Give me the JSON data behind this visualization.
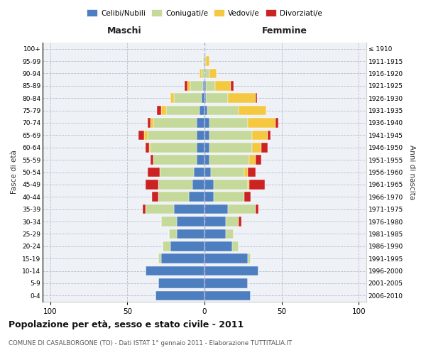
{
  "age_groups": [
    "0-4",
    "5-9",
    "10-14",
    "15-19",
    "20-24",
    "25-29",
    "30-34",
    "35-39",
    "40-44",
    "45-49",
    "50-54",
    "55-59",
    "60-64",
    "65-69",
    "70-74",
    "75-79",
    "80-84",
    "85-89",
    "90-94",
    "95-99",
    "100+"
  ],
  "birth_years": [
    "2006-2010",
    "2001-2005",
    "1996-2000",
    "1991-1995",
    "1986-1990",
    "1981-1985",
    "1976-1980",
    "1971-1975",
    "1966-1970",
    "1961-1965",
    "1956-1960",
    "1951-1955",
    "1946-1950",
    "1941-1945",
    "1936-1940",
    "1931-1935",
    "1926-1930",
    "1921-1925",
    "1916-1920",
    "1911-1915",
    "≤ 1910"
  ],
  "colors": {
    "celibe": "#4D7EBF",
    "coniugato": "#C5D99A",
    "vedovo": "#F5C842",
    "divorziato": "#CC2222"
  },
  "males": {
    "celibe": [
      32,
      30,
      38,
      28,
      22,
      18,
      18,
      20,
      10,
      8,
      7,
      5,
      5,
      5,
      5,
      3,
      2,
      1,
      0,
      0,
      0
    ],
    "coniugato": [
      0,
      0,
      0,
      2,
      5,
      5,
      10,
      18,
      20,
      22,
      22,
      28,
      30,
      32,
      28,
      22,
      18,
      8,
      2,
      1,
      0
    ],
    "vedovo": [
      0,
      0,
      0,
      0,
      0,
      0,
      0,
      0,
      0,
      0,
      0,
      0,
      1,
      2,
      2,
      3,
      2,
      2,
      1,
      0,
      0
    ],
    "divorziato": [
      0,
      0,
      0,
      0,
      0,
      0,
      0,
      2,
      4,
      8,
      8,
      2,
      2,
      4,
      2,
      3,
      0,
      2,
      0,
      0,
      0
    ]
  },
  "females": {
    "nubile": [
      30,
      28,
      35,
      28,
      18,
      14,
      14,
      15,
      6,
      6,
      4,
      3,
      3,
      3,
      3,
      2,
      1,
      1,
      0,
      0,
      0
    ],
    "coniugata": [
      0,
      0,
      0,
      2,
      4,
      5,
      8,
      18,
      20,
      22,
      22,
      26,
      28,
      28,
      25,
      20,
      14,
      6,
      3,
      1,
      0
    ],
    "vedova": [
      0,
      0,
      0,
      0,
      0,
      0,
      0,
      0,
      0,
      1,
      2,
      4,
      6,
      10,
      18,
      18,
      18,
      10,
      5,
      2,
      0
    ],
    "divorziata": [
      0,
      0,
      0,
      0,
      0,
      0,
      2,
      2,
      4,
      10,
      5,
      4,
      4,
      2,
      2,
      0,
      1,
      2,
      0,
      0,
      0
    ]
  },
  "xlim": 105,
  "title_main": "Popolazione per età, sesso e stato civile - 2011",
  "title_sub": "COMUNE DI CASALBORGONE (TO) - Dati ISTAT 1° gennaio 2011 - Elaborazione TUTTITALIA.IT",
  "label_maschi": "Maschi",
  "label_femmine": "Femmine",
  "label_fasce": "Fasce di età",
  "label_anni": "Anni di nascita",
  "legend_labels": [
    "Celibi/Nubili",
    "Coniugati/e",
    "Vedovi/e",
    "Divorziati/e"
  ],
  "bg_color": "#EEF2F7",
  "grid_color": "#BBBBCC",
  "center_line_color": "#AAAACC"
}
